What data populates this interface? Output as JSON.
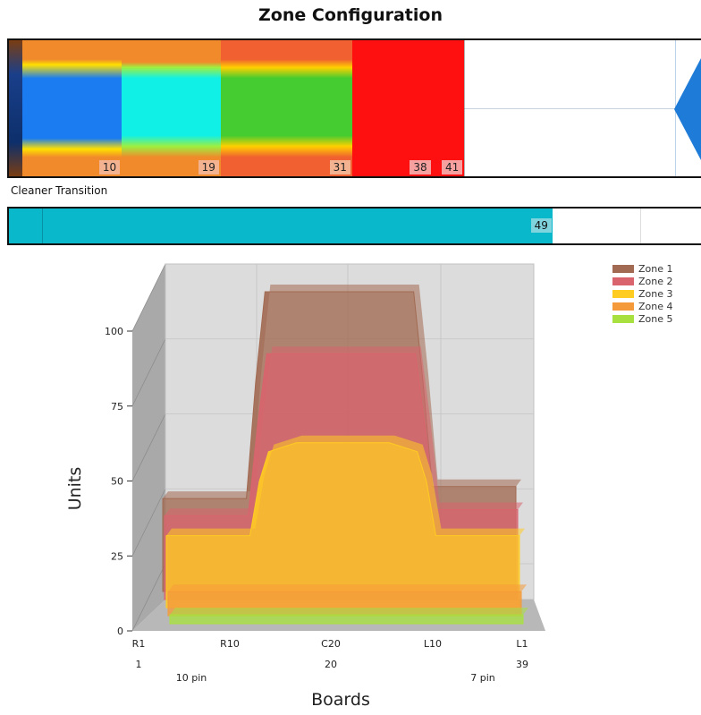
{
  "page": {
    "title": "Zone Configuration"
  },
  "zone_strip": {
    "segments": [
      {
        "label": "",
        "left_pct": 0,
        "right_pct": 2
      },
      {
        "label": "10",
        "left_pct": 2,
        "right_pct": 16.3
      },
      {
        "label": "19",
        "left_pct": 16.3,
        "right_pct": 30.6
      },
      {
        "label": "31",
        "left_pct": 30.6,
        "right_pct": 49.6
      },
      {
        "label": "38",
        "left_pct": 49.6,
        "right_pct": 61.2
      },
      {
        "label": "41",
        "left_pct": 61.2,
        "right_pct": 65.8
      }
    ],
    "colors": {
      "orange": "#f08a2a",
      "blue": "#1a7cf0",
      "cyan": "#10f0e6",
      "green": "#44cc30",
      "red": "#ff1010",
      "arrow": "#1e7bd7"
    }
  },
  "cleaner": {
    "label": "Cleaner Transition",
    "value_label": "49",
    "fill_pct": 78.5,
    "color": "#0ab8cc"
  },
  "chart_data": {
    "type": "area",
    "ylabel": "Units",
    "xlabel": "Boards",
    "ylim": [
      0,
      100
    ],
    "yticks": [
      "0",
      "25",
      "50",
      "75",
      "100"
    ],
    "x_ticks": [
      "R1",
      "R10",
      "C20",
      "L10",
      "L1"
    ],
    "x_sub_ticks": [
      "1",
      "20",
      "39"
    ],
    "x_annotations": [
      "10 pin",
      "7 pin"
    ],
    "legend": {
      "position": "top-right"
    },
    "grid": true,
    "x": [
      1,
      5,
      10,
      11,
      12,
      15,
      20,
      25,
      28,
      29,
      30,
      33,
      39
    ],
    "series": [
      {
        "name": "Zone 1",
        "color": "#a26a52",
        "values": [
          31,
          31,
          31,
          70,
          100,
          100,
          100,
          100,
          100,
          70,
          35,
          35,
          35
        ]
      },
      {
        "name": "Zone 2",
        "color": "#d9646e",
        "values": [
          28,
          28,
          28,
          58,
          82,
          82,
          82,
          82,
          82,
          58,
          30,
          30,
          30
        ]
      },
      {
        "name": "Zone 3",
        "color": "#ffcc22",
        "values": [
          24,
          24,
          24,
          42,
          52,
          55,
          55,
          55,
          52,
          42,
          24,
          24,
          24
        ]
      },
      {
        "name": "Zone 4",
        "color": "#f59a3a",
        "values": [
          8,
          8,
          8,
          8,
          8,
          8,
          8,
          8,
          8,
          8,
          8,
          8,
          8
        ]
      },
      {
        "name": "Zone 5",
        "color": "#a8e040",
        "values": [
          3,
          3,
          3,
          3,
          3,
          3,
          3,
          3,
          3,
          3,
          3,
          3,
          3
        ]
      }
    ]
  }
}
